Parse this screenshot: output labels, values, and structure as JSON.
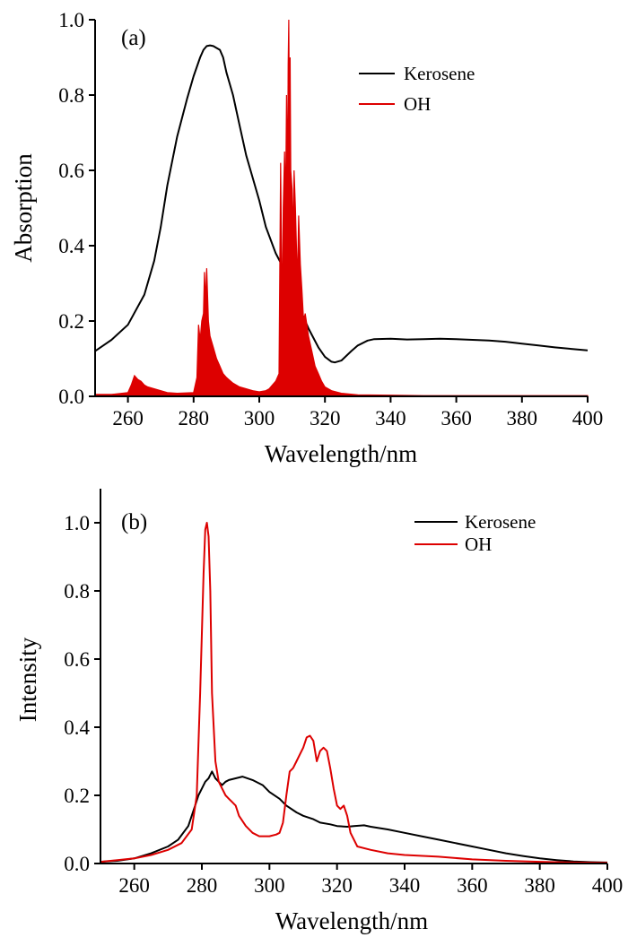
{
  "colors": {
    "kerosene": "#000000",
    "oh": "#dd0000"
  },
  "chart_data": [
    {
      "panel_label": "(a)",
      "type": "line",
      "xlabel": "Wavelength/nm",
      "ylabel": "Absorption",
      "xlim": [
        250,
        400
      ],
      "ylim": [
        0,
        1.0
      ],
      "xticks": [
        "260",
        "280",
        "300",
        "320",
        "340",
        "360",
        "380",
        "400"
      ],
      "xtick_values": [
        260,
        280,
        300,
        320,
        340,
        360,
        380,
        400
      ],
      "yticks": [
        "0.0",
        "0.2",
        "0.4",
        "0.6",
        "0.8",
        "1.0"
      ],
      "ytick_values": [
        0,
        0.2,
        0.4,
        0.6,
        0.8,
        1.0
      ],
      "legend_position": "upper-right",
      "series": [
        {
          "name": "Kerosene",
          "color": "#000000",
          "style": "line",
          "x": [
            250,
            255,
            260,
            265,
            268,
            270,
            272,
            275,
            278,
            280,
            282,
            283,
            284,
            285,
            286,
            287,
            288,
            289,
            290,
            292,
            294,
            296,
            298,
            300,
            302,
            305,
            308,
            310,
            312,
            315,
            318,
            320,
            322,
            323,
            325,
            328,
            330,
            333,
            335,
            340,
            345,
            350,
            355,
            360,
            365,
            370,
            375,
            380,
            385,
            390,
            395,
            400
          ],
          "y": [
            0.12,
            0.15,
            0.19,
            0.27,
            0.36,
            0.45,
            0.56,
            0.69,
            0.79,
            0.85,
            0.9,
            0.92,
            0.93,
            0.932,
            0.93,
            0.925,
            0.92,
            0.9,
            0.86,
            0.8,
            0.72,
            0.64,
            0.58,
            0.52,
            0.45,
            0.38,
            0.33,
            0.29,
            0.24,
            0.18,
            0.13,
            0.105,
            0.092,
            0.09,
            0.095,
            0.12,
            0.135,
            0.148,
            0.152,
            0.153,
            0.151,
            0.152,
            0.153,
            0.152,
            0.15,
            0.148,
            0.145,
            0.14,
            0.135,
            0.13,
            0.126,
            0.122
          ]
        },
        {
          "name": "OH",
          "color": "#dd0000",
          "style": "spikes",
          "x": [
            250,
            255,
            260,
            261,
            262,
            263,
            264,
            265,
            266,
            268,
            270,
            272,
            275,
            280,
            281,
            281.5,
            282,
            282.5,
            283,
            283.3,
            283.6,
            284,
            284.5,
            285,
            286,
            287,
            288,
            289,
            290,
            292,
            294,
            296,
            298,
            300,
            302,
            303,
            304,
            305,
            306,
            306.5,
            307,
            307.3,
            307.7,
            308,
            308.3,
            308.6,
            308.8,
            309,
            309.2,
            309.4,
            309.6,
            310,
            310.3,
            310.6,
            311,
            311.3,
            311.6,
            312,
            312.5,
            313,
            313.5,
            314,
            315,
            316,
            317,
            318,
            319,
            320,
            322,
            325,
            330,
            340,
            350,
            360,
            380,
            400
          ],
          "y": [
            0.005,
            0.005,
            0.01,
            0.03,
            0.055,
            0.045,
            0.04,
            0.03,
            0.025,
            0.02,
            0.015,
            0.01,
            0.008,
            0.01,
            0.05,
            0.19,
            0.15,
            0.2,
            0.22,
            0.33,
            0.25,
            0.34,
            0.2,
            0.16,
            0.13,
            0.1,
            0.08,
            0.06,
            0.05,
            0.035,
            0.025,
            0.02,
            0.015,
            0.012,
            0.015,
            0.02,
            0.03,
            0.04,
            0.06,
            0.62,
            0.2,
            0.5,
            0.65,
            0.5,
            0.8,
            0.55,
            0.88,
            1.0,
            0.7,
            0.9,
            0.6,
            0.55,
            0.42,
            0.6,
            0.5,
            0.4,
            0.3,
            0.48,
            0.35,
            0.28,
            0.2,
            0.22,
            0.16,
            0.12,
            0.08,
            0.06,
            0.04,
            0.025,
            0.015,
            0.008,
            0.004,
            0.003,
            0.002,
            0.002,
            0.002,
            0.002
          ]
        }
      ]
    },
    {
      "panel_label": "(b)",
      "type": "line",
      "xlabel": "Wavelength/nm",
      "ylabel": "Intensity",
      "xlim": [
        250,
        400
      ],
      "ylim": [
        0,
        1.1
      ],
      "xticks": [
        "260",
        "280",
        "300",
        "320",
        "340",
        "360",
        "380",
        "400"
      ],
      "xtick_values": [
        260,
        280,
        300,
        320,
        340,
        360,
        380,
        400
      ],
      "yticks": [
        "0.0",
        "0.2",
        "0.4",
        "0.6",
        "0.8",
        "1.0"
      ],
      "ytick_values": [
        0,
        0.2,
        0.4,
        0.6,
        0.8,
        1.0
      ],
      "legend_position": "upper-right",
      "series": [
        {
          "name": "Kerosene",
          "color": "#000000",
          "style": "line",
          "x": [
            250,
            255,
            260,
            265,
            270,
            273,
            276,
            278,
            279,
            280,
            281,
            282,
            283,
            284,
            285,
            286,
            287,
            288,
            290,
            292,
            295,
            298,
            300,
            303,
            305,
            308,
            310,
            313,
            315,
            318,
            320,
            323,
            325,
            328,
            330,
            335,
            340,
            345,
            350,
            355,
            360,
            365,
            370,
            375,
            380,
            385,
            390,
            395,
            400
          ],
          "y": [
            0.005,
            0.008,
            0.015,
            0.03,
            0.05,
            0.07,
            0.11,
            0.17,
            0.2,
            0.22,
            0.24,
            0.25,
            0.27,
            0.25,
            0.24,
            0.23,
            0.24,
            0.245,
            0.25,
            0.255,
            0.245,
            0.23,
            0.21,
            0.19,
            0.17,
            0.15,
            0.14,
            0.13,
            0.12,
            0.115,
            0.11,
            0.108,
            0.11,
            0.112,
            0.108,
            0.1,
            0.09,
            0.08,
            0.07,
            0.06,
            0.05,
            0.04,
            0.03,
            0.022,
            0.015,
            0.01,
            0.006,
            0.004,
            0.003
          ]
        },
        {
          "name": "OH",
          "color": "#dd0000",
          "style": "line",
          "x": [
            250,
            255,
            260,
            265,
            270,
            274,
            277,
            278.5,
            279.5,
            280.5,
            281,
            281.5,
            282,
            282.5,
            283,
            284,
            285,
            286,
            287,
            288,
            289,
            290,
            291,
            293,
            295,
            297,
            300,
            302,
            303,
            304,
            305,
            306,
            307,
            308,
            309,
            310,
            311,
            312,
            313,
            314,
            315,
            316,
            317,
            318,
            319,
            320,
            321,
            322,
            323,
            324,
            326,
            330,
            335,
            340,
            350,
            360,
            370,
            380,
            390,
            400
          ],
          "y": [
            0.005,
            0.01,
            0.015,
            0.025,
            0.04,
            0.06,
            0.1,
            0.2,
            0.5,
            0.85,
            0.98,
            1.0,
            0.96,
            0.8,
            0.5,
            0.3,
            0.24,
            0.22,
            0.2,
            0.19,
            0.18,
            0.17,
            0.14,
            0.11,
            0.09,
            0.08,
            0.08,
            0.085,
            0.09,
            0.12,
            0.2,
            0.27,
            0.28,
            0.3,
            0.32,
            0.34,
            0.37,
            0.375,
            0.36,
            0.3,
            0.33,
            0.34,
            0.33,
            0.28,
            0.22,
            0.17,
            0.16,
            0.17,
            0.14,
            0.09,
            0.05,
            0.04,
            0.03,
            0.025,
            0.02,
            0.012,
            0.008,
            0.005,
            0.003,
            0.002
          ]
        }
      ]
    }
  ]
}
